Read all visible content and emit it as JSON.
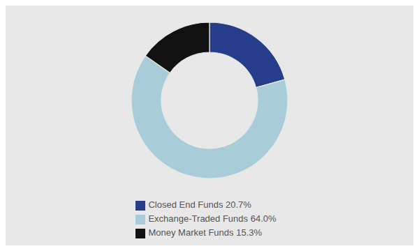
{
  "chart_data": {
    "type": "donut",
    "labels": [
      "Closed End Funds 20.7%",
      "Exchange-Traded Funds 64.0%",
      "Money Market Funds 15.3%"
    ],
    "values": [
      20.7,
      64.0,
      15.3
    ],
    "colors": [
      "#253d8a",
      "#a8cdd8",
      "#111111"
    ],
    "legend": "bottom"
  }
}
